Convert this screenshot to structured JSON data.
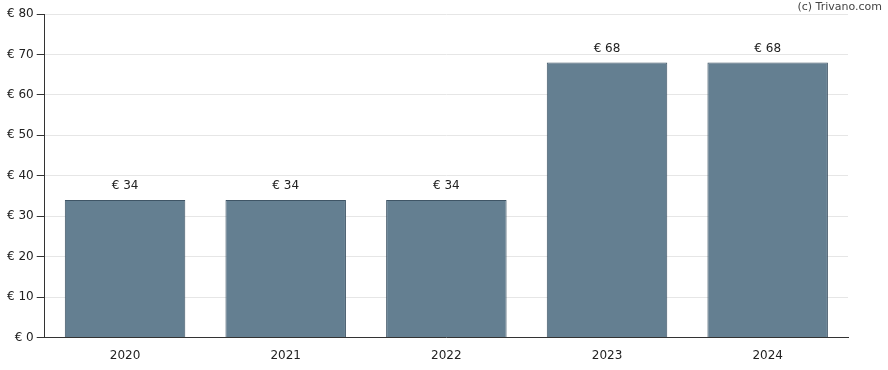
{
  "chart_data": {
    "type": "bar",
    "categories": [
      "2020",
      "2021",
      "2022",
      "2023",
      "2024"
    ],
    "values": [
      34,
      34,
      34,
      68,
      68
    ],
    "value_labels": [
      "€ 34",
      "€ 34",
      "€ 34",
      "€ 68",
      "€ 68"
    ],
    "data_labels": true,
    "color": "#647f91",
    "ylim": [
      0,
      80
    ],
    "yticks": [
      {
        "value": 0,
        "label": "€ 0"
      },
      {
        "value": 10,
        "label": "€ 10"
      },
      {
        "value": 20,
        "label": "€ 20"
      },
      {
        "value": 30,
        "label": "€ 30"
      },
      {
        "value": 40,
        "label": "€ 40"
      },
      {
        "value": 50,
        "label": "€ 50"
      },
      {
        "value": 60,
        "label": "€ 60"
      },
      {
        "value": 70,
        "label": "€ 70"
      },
      {
        "value": 80,
        "label": "€ 80"
      }
    ],
    "grid": true,
    "annotations": [
      "(c) Trivano.com"
    ]
  }
}
